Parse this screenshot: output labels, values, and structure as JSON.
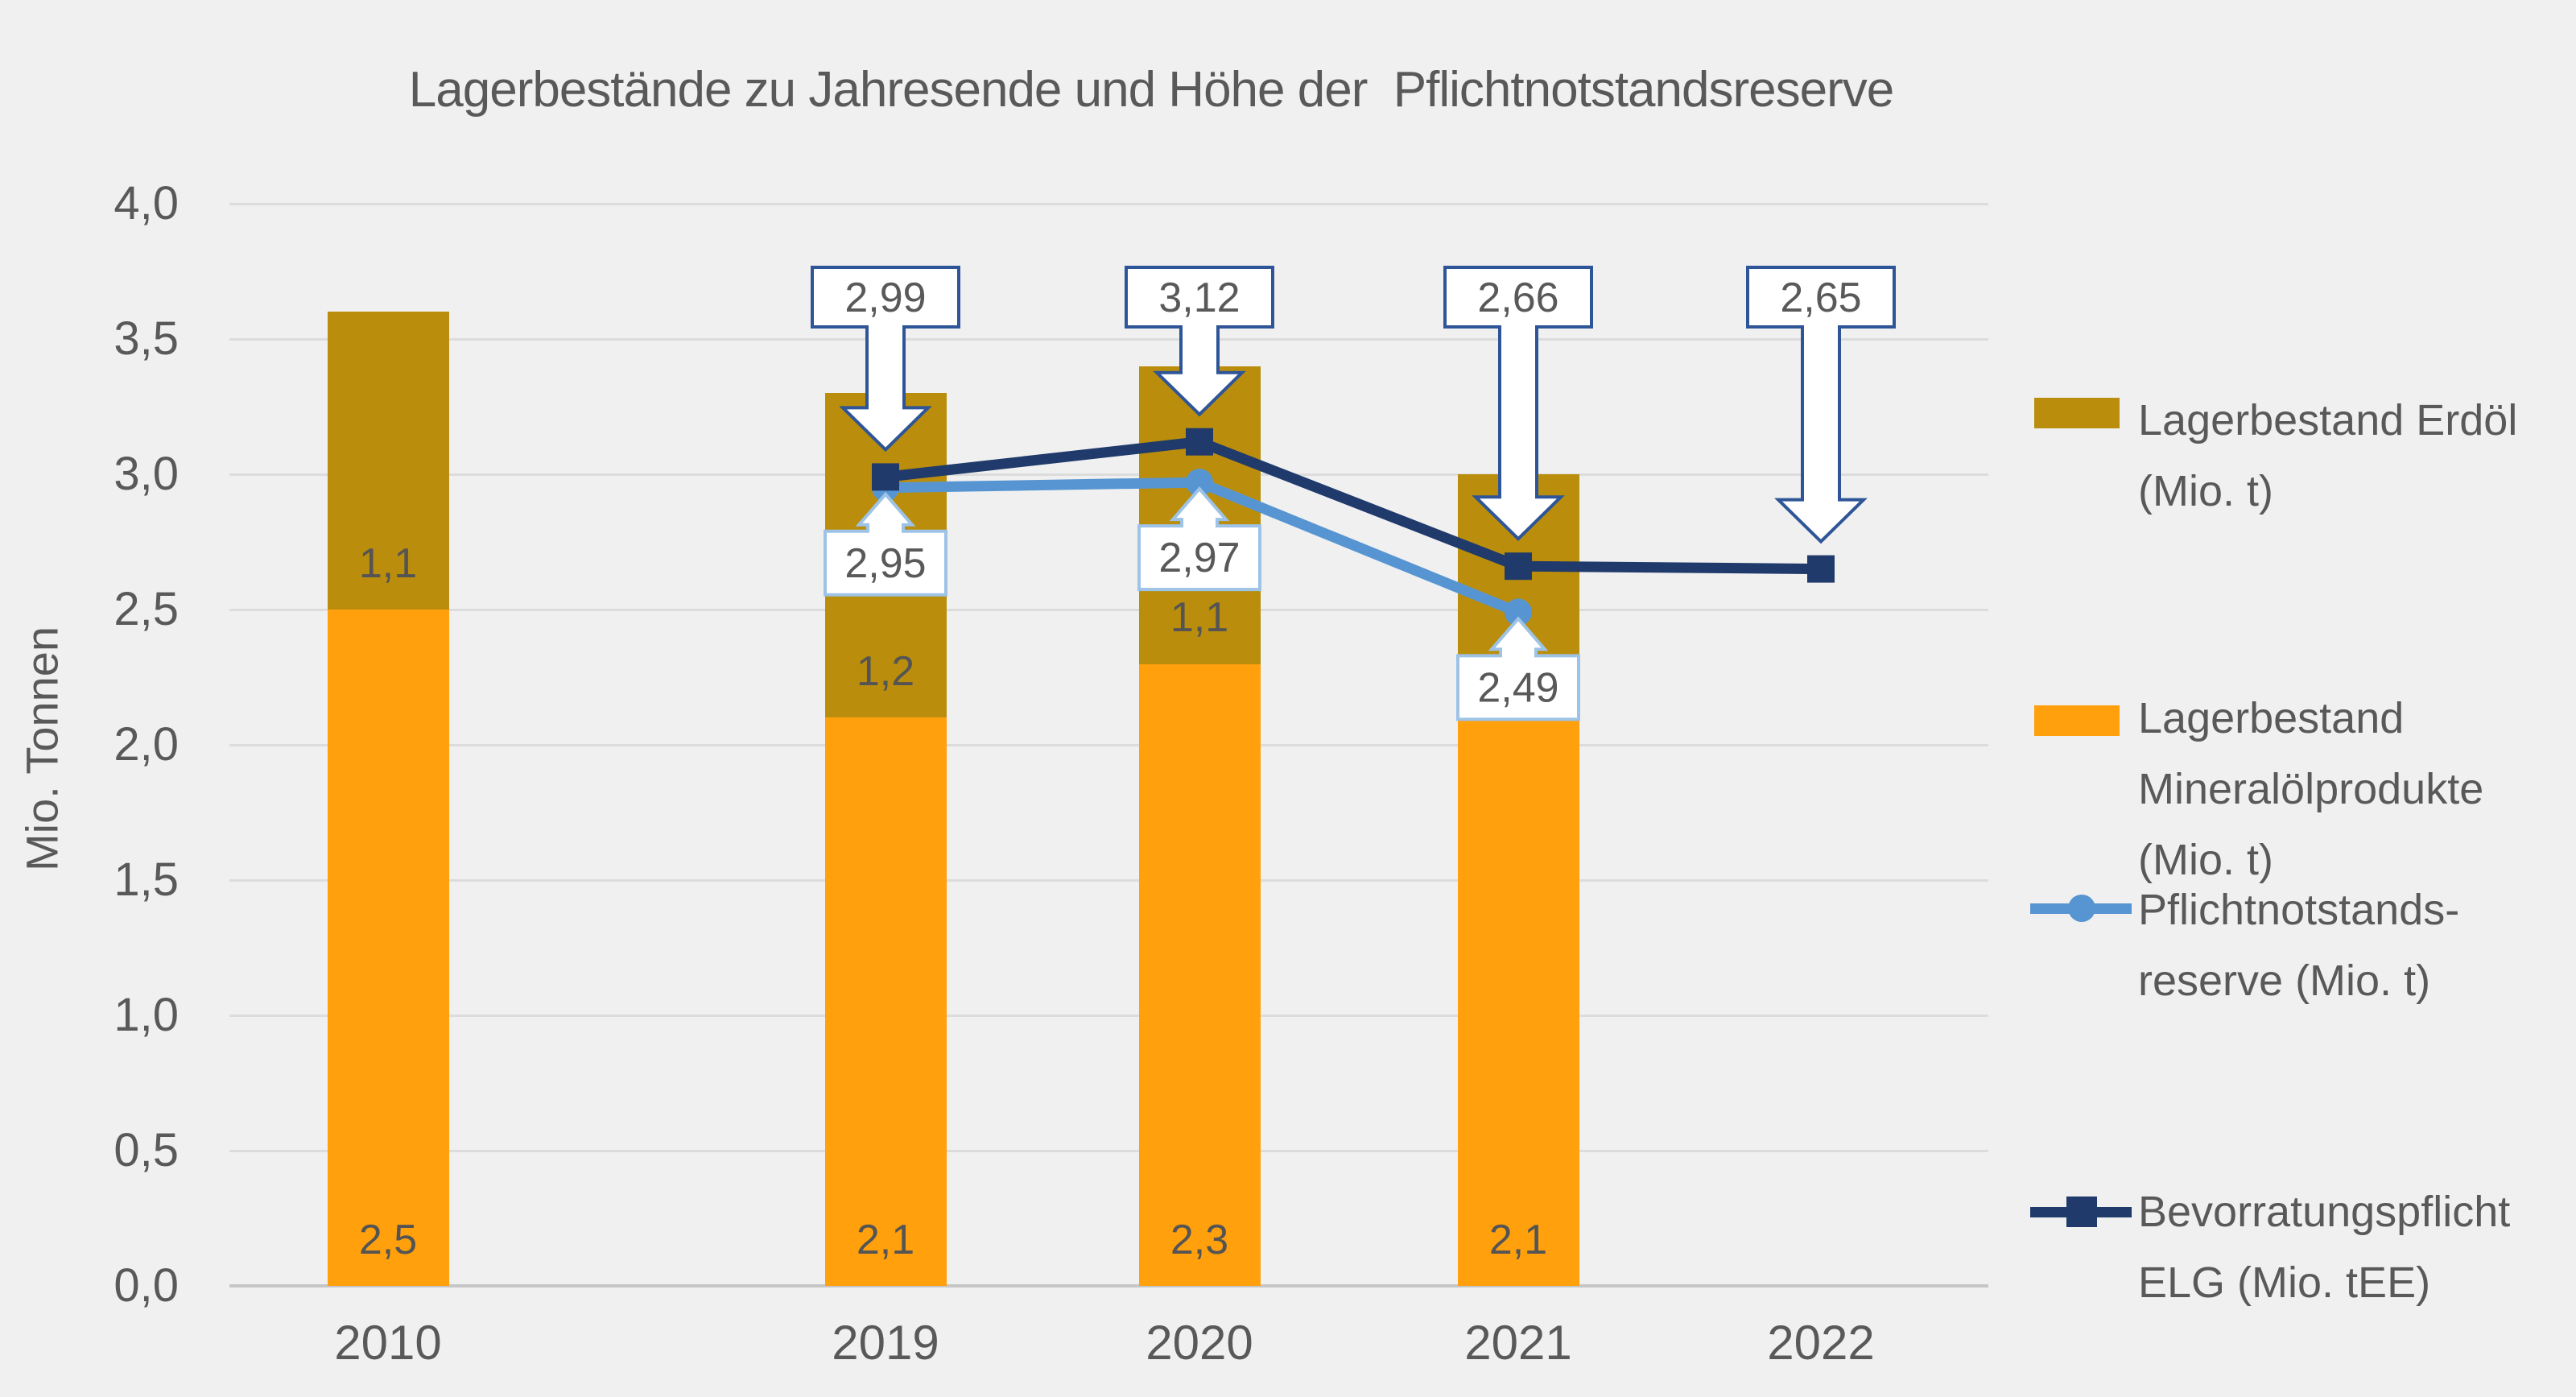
{
  "colors": {
    "background": "#F0F0F0",
    "gridline": "#DCDCDC",
    "axis_line": "#C6C6C6",
    "text": "#595959"
  },
  "chart_data": {
    "type": "combo-bar-line",
    "title": "Lagerbestände zu Jahresende und Höhe der  Pflichtnotstandsreserve",
    "categories": [
      "2010",
      "2019",
      "2020",
      "2021",
      "2022"
    ],
    "bar_series": [
      {
        "name": "Lagerbestand Mineralölprodukte (Mio. t)",
        "color": "#FFA00C",
        "values": [
          2.5,
          2.1,
          2.3,
          2.1,
          null
        ],
        "data_labels": [
          "2,5",
          "2,1",
          "2,3",
          "2,1",
          null
        ]
      },
      {
        "name": "Lagerbestand Erdöl (Mio. t)",
        "color": "#BA8E0C",
        "values": [
          1.1,
          1.2,
          1.1,
          0.9,
          null
        ],
        "data_labels": [
          "1,1",
          "1,2",
          "1,1",
          null,
          null
        ]
      }
    ],
    "line_series": [
      {
        "name": "Pflichtnotstandsreserve (Mio. t)",
        "color": "#5795D2",
        "marker": "circle",
        "callout_direction": "up",
        "callout_border": "#9DC3E6",
        "values": [
          null,
          2.95,
          2.97,
          2.49,
          null
        ],
        "callout_labels": [
          null,
          "2,95",
          "2,97",
          "2,49",
          null
        ]
      },
      {
        "name": "Bevorratungspflicht ELG (Mio. tEE)",
        "color": "#1F3A6B",
        "marker": "square",
        "callout_direction": "down",
        "callout_border": "#2E5597",
        "values": [
          null,
          2.99,
          3.12,
          2.66,
          2.65
        ],
        "callout_labels": [
          null,
          "2,99",
          "3,12",
          "2,66",
          "2,65"
        ]
      }
    ],
    "ylabel": "Mio. Tonnen",
    "ylim": [
      0,
      4
    ],
    "ystep": 0.5,
    "y_tick_labels": [
      "0,0",
      "0,5",
      "1,0",
      "1,5",
      "2,0",
      "2,5",
      "3,0",
      "3,5",
      "4,0"
    ],
    "grid": "horizontal",
    "legend_position": "right",
    "stacked_bar_totals": [
      3.6,
      3.3,
      3.4,
      3.0,
      null
    ]
  },
  "legend": {
    "items": [
      {
        "id": "lagerbestand-erdoel",
        "swatch": "rect",
        "color": "#BA8E0C",
        "lines": [
          "Lagerbestand Erdöl",
          "(Mio. t)"
        ]
      },
      {
        "id": "lagerbestand-mineraloelprodukte",
        "swatch": "rect",
        "color": "#FFA00C",
        "lines": [
          "Lagerbestand",
          "Mineralölprodukte",
          "(Mio. t)"
        ]
      },
      {
        "id": "pflichtnotstandsreserve",
        "swatch": "line-circle",
        "color": "#5795D2",
        "lines": [
          "Pflichtnotstands-",
          "reserve (Mio. t)"
        ]
      },
      {
        "id": "bevorratungspflicht-elg",
        "swatch": "line-square",
        "color": "#1F3A6B",
        "lines": [
          "Bevorratungspflicht",
          "ELG (Mio. tEE)"
        ]
      }
    ]
  }
}
